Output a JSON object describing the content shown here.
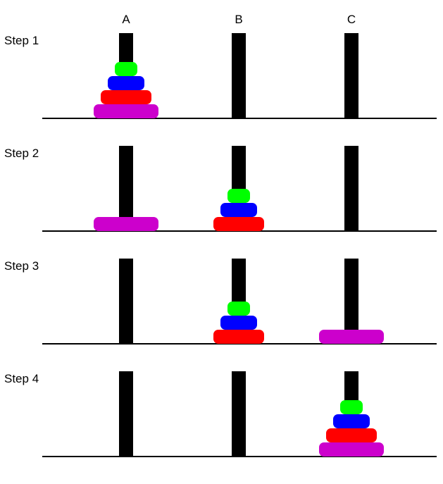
{
  "peg_labels": [
    "A",
    "B",
    "C"
  ],
  "colors": {
    "peg": "#000000",
    "base": "#000000",
    "disks": {
      "small": "#00ff00",
      "medium": "#0000ff",
      "large": "#ff0000",
      "xlarge": "#cc00cc"
    }
  },
  "steps": [
    {
      "label": "Step 1",
      "pegs": [
        [
          "xlarge",
          "large",
          "medium",
          "small"
        ],
        [],
        []
      ]
    },
    {
      "label": "Step 2",
      "pegs": [
        [
          "xlarge"
        ],
        [
          "large",
          "medium",
          "small"
        ],
        []
      ]
    },
    {
      "label": "Step 3",
      "pegs": [
        [],
        [
          "large",
          "medium",
          "small"
        ],
        [
          "xlarge"
        ]
      ]
    },
    {
      "label": "Step 4",
      "pegs": [
        [],
        [],
        [
          "xlarge",
          "large",
          "medium",
          "small"
        ]
      ]
    }
  ]
}
